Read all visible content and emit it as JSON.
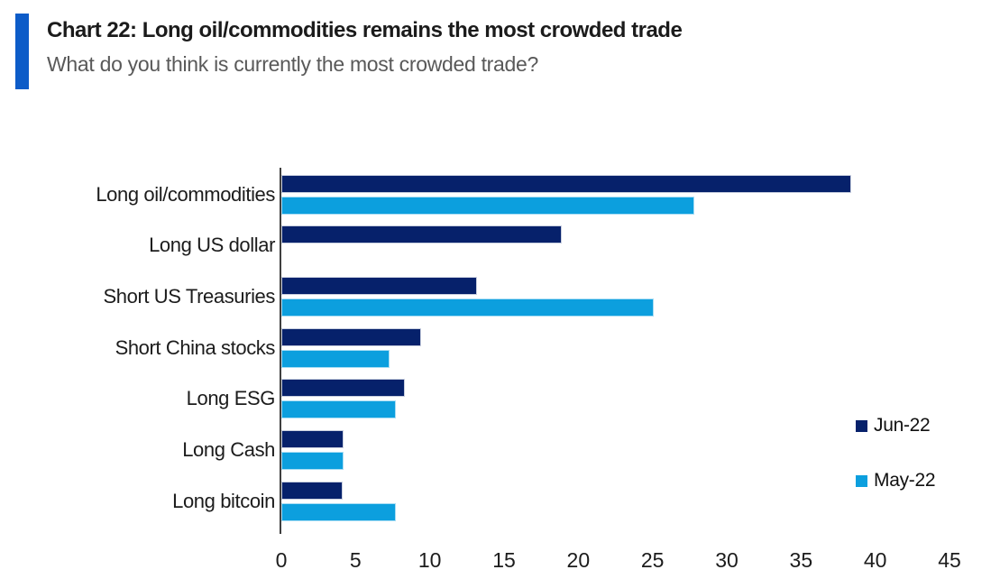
{
  "header": {
    "title": "Chart 22: Long oil/commodities remains the most crowded trade",
    "subtitle": "What do you think is currently the most crowded trade?"
  },
  "colors": {
    "accent_bar": "#0D5CC8",
    "title_text": "#1B1B1B",
    "subtitle_text": "#595959",
    "axis_line": "#3F3F3F",
    "jun_22_navy": "#06216B",
    "may_22_light_blue": "#0C9FDE"
  },
  "chart_data": {
    "type": "bar",
    "orientation": "horizontal",
    "title": "Chart 22: Long oil/commodities remains the most crowded trade",
    "subtitle": "What do you think is currently the most crowded trade?",
    "categories": [
      "Long oil/commodities",
      "Long US dollar",
      "Short US Treasuries",
      "Short China stocks",
      "Long ESG",
      "Long Cash",
      "Long bitcoin"
    ],
    "series": [
      {
        "name": "Jun-22",
        "color": "#06216B",
        "values": [
          38.4,
          18.9,
          13.2,
          9.4,
          8.3,
          4.2,
          4.1
        ]
      },
      {
        "name": "May-22",
        "color": "#0C9FDE",
        "values": [
          27.8,
          0,
          25.1,
          7.3,
          7.7,
          4.2,
          7.7
        ]
      }
    ],
    "xlabel": "",
    "ylabel": "",
    "xlim": [
      0,
      45
    ],
    "xticks": [
      0,
      5,
      10,
      15,
      20,
      25,
      30,
      35,
      40,
      45
    ],
    "grid": false,
    "legend_position": "right"
  }
}
